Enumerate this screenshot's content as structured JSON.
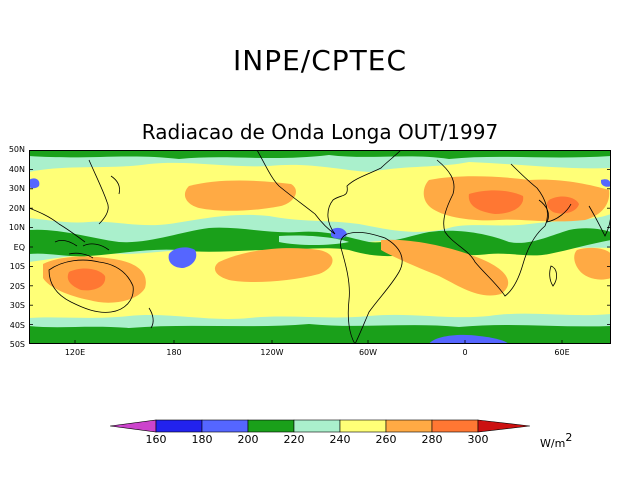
{
  "header": {
    "title": "INPE/CPTEC"
  },
  "map": {
    "title": "Radiacao de Onda Longa OUT/1997",
    "lat_labels": [
      "50N",
      "40N",
      "30N",
      "20N",
      "10N",
      "EQ",
      "10S",
      "20S",
      "30S",
      "40S",
      "50S"
    ],
    "lon_labels": [
      "120E",
      "180",
      "120W",
      "60W",
      "0",
      "60E"
    ],
    "colors": {
      "very_low": "#cc44cc",
      "c160_180": "#2222ee",
      "c180_200": "#5566ff",
      "c200_220": "#1aa01a",
      "c220_240": "#aaf0cc",
      "c240_260": "#ffff77",
      "c260_280": "#ffaa44",
      "c280_300": "#ff7733",
      "very_high": "#cc1111"
    }
  },
  "colorbar": {
    "tick_labels": [
      "160",
      "180",
      "200",
      "220",
      "240",
      "260",
      "280",
      "300"
    ],
    "unit": "W/m",
    "unit_exp": "2"
  }
}
